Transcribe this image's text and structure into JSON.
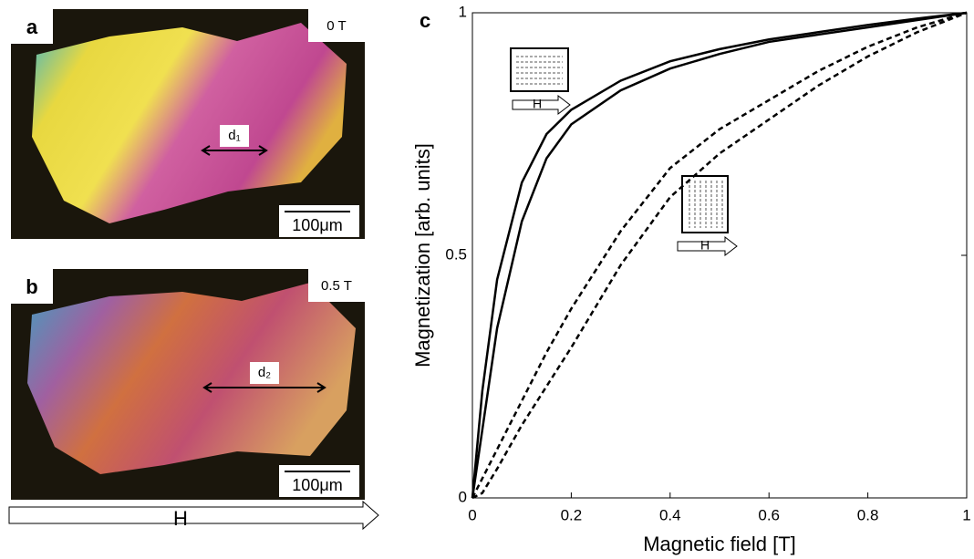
{
  "panels": [
    {
      "label": "a",
      "field": "0 T",
      "distance": "d₁",
      "scale_bar": "100μm"
    },
    {
      "label": "b",
      "field": "0.5 T",
      "distance": "d₂",
      "scale_bar": "100μm"
    }
  ],
  "field_arrow": "H",
  "chart_data": {
    "type": "line",
    "panel_label": "c",
    "xlabel": "Magnetic field [T]",
    "ylabel": "Magnetization [arb. units]",
    "x": [
      0,
      0.02,
      0.05,
      0.1,
      0.15,
      0.2,
      0.3,
      0.4,
      0.5,
      0.6,
      0.7,
      0.8,
      0.9,
      1
    ],
    "series": [
      {
        "color": "#000000",
        "dash": false,
        "values": [
          0,
          0.22,
          0.45,
          0.65,
          0.75,
          0.8,
          0.86,
          0.9,
          0.925,
          0.945,
          0.96,
          0.975,
          0.988,
          1
        ]
      },
      {
        "color": "#000000",
        "dash": false,
        "values": [
          0,
          0.14,
          0.35,
          0.57,
          0.7,
          0.77,
          0.84,
          0.885,
          0.915,
          0.94,
          0.955,
          0.97,
          0.985,
          1
        ]
      },
      {
        "color": "#000000",
        "dash": true,
        "values": [
          0,
          0.04,
          0.1,
          0.2,
          0.3,
          0.39,
          0.55,
          0.68,
          0.76,
          0.82,
          0.88,
          0.93,
          0.97,
          1
        ]
      },
      {
        "color": "#000000",
        "dash": true,
        "values": [
          0,
          0.01,
          0.06,
          0.15,
          0.23,
          0.31,
          0.48,
          0.62,
          0.71,
          0.78,
          0.85,
          0.91,
          0.96,
          1
        ]
      }
    ],
    "annotations": [
      "H",
      "H"
    ],
    "xlim": [
      0,
      1
    ],
    "ylim": [
      0,
      1
    ],
    "xticks": [
      0,
      0.2,
      0.4,
      0.6,
      0.8,
      1
    ],
    "yticks": [
      0,
      0.5,
      1
    ]
  }
}
